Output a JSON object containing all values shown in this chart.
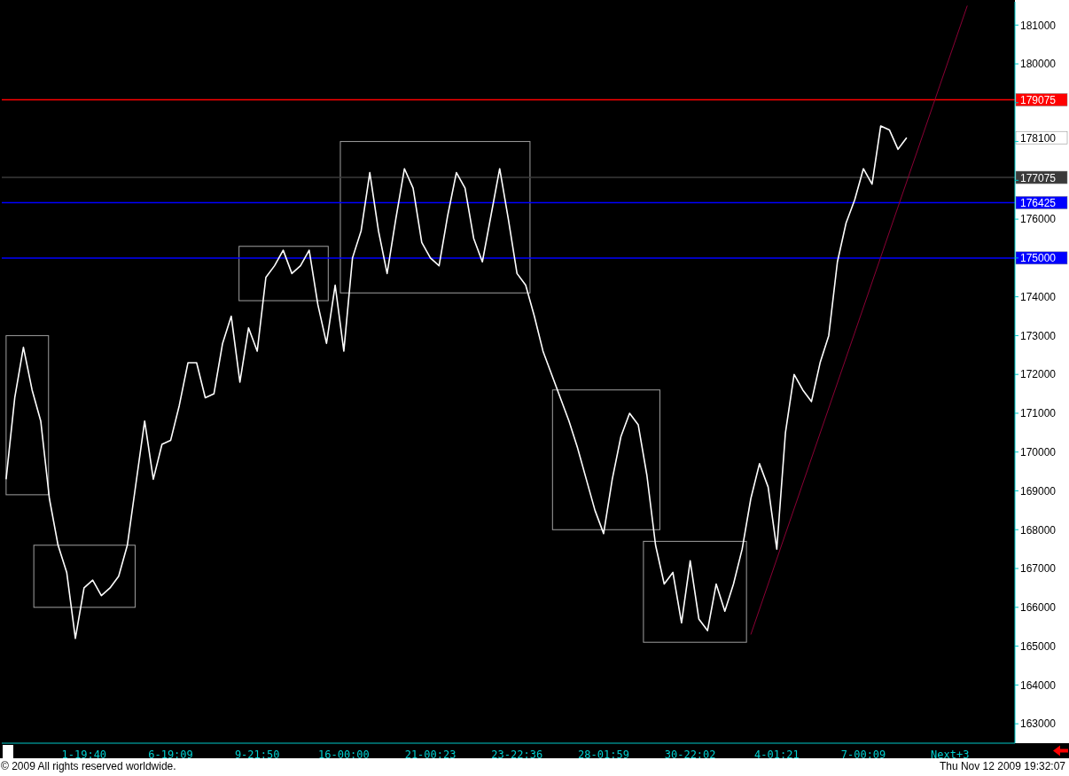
{
  "chart_data": {
    "type": "line",
    "categories": [
      null,
      null,
      null,
      null,
      null,
      null,
      null,
      null,
      null,
      "1-19:40",
      null,
      null,
      null,
      null,
      null,
      null,
      null,
      null,
      null,
      "6-19:09",
      null,
      null,
      null,
      null,
      null,
      null,
      null,
      null,
      null,
      "9-21:50",
      null,
      null,
      null,
      null,
      null,
      null,
      null,
      null,
      null,
      "16-00:00",
      null,
      null,
      null,
      null,
      null,
      null,
      null,
      null,
      null,
      "21-00:23",
      null,
      null,
      null,
      null,
      null,
      null,
      null,
      null,
      null,
      "23-22:36",
      null,
      null,
      null,
      null,
      null,
      null,
      null,
      null,
      null,
      "28-01:59",
      null,
      null,
      null,
      null,
      null,
      null,
      null,
      null,
      null,
      "30-22:02",
      null,
      null,
      null,
      null,
      null,
      null,
      null,
      null,
      null,
      "4-01:21",
      null,
      null,
      null,
      null,
      null,
      null,
      null,
      null,
      null,
      "7-00:09",
      null,
      null,
      null,
      null,
      null,
      null,
      null,
      null,
      null,
      "Next+3",
      null,
      null,
      null,
      null,
      null,
      null,
      null
    ],
    "ylim": [
      162500,
      181600
    ],
    "yticks": [
      163000,
      164000,
      165000,
      166000,
      167000,
      168000,
      169000,
      170000,
      171000,
      172000,
      173000,
      174000,
      {
        "value": 175000,
        "label": null
      },
      176000,
      {
        "value": 177000,
        "label": null
      },
      {
        "value": 178000,
        "label": null
      },
      {
        "value": 179000,
        "label": null
      },
      180000,
      181000
    ],
    "series": [
      {
        "color": "#ffffff",
        "values": [
          169300,
          171400,
          172700,
          171600,
          170800,
          168800,
          167600,
          166900,
          165200,
          166500,
          166700,
          166300,
          166500,
          166800,
          167600,
          169200,
          170800,
          169300,
          170200,
          170300,
          171200,
          172300,
          172300,
          171400,
          171500,
          172800,
          173500,
          171800,
          173200,
          172600,
          174500,
          174800,
          175200,
          174600,
          174800,
          175200,
          173800,
          172800,
          174300,
          172600,
          175000,
          175700,
          177200,
          175700,
          174600,
          176000,
          177300,
          176800,
          175400,
          175000,
          174800,
          176100,
          177200,
          176800,
          175500,
          174900,
          176100,
          177300,
          176000,
          174600,
          174300,
          173500,
          172600,
          172000,
          171400,
          170800,
          170100,
          169300,
          168500,
          167900,
          169300,
          170400,
          171000,
          170700,
          169400,
          167600,
          166600,
          166900,
          165600,
          167200,
          165700,
          165400,
          166600,
          165900,
          166600,
          167500,
          168800,
          169700,
          169100,
          167500,
          170500,
          172000,
          171600,
          171300,
          172300,
          173000,
          174900,
          175900,
          176500,
          177300,
          176900,
          178400,
          178300,
          177800,
          178100,
          null,
          null,
          null,
          null,
          null,
          null,
          null,
          null,
          null,
          null,
          null,
          null
        ]
      },
      {
        "color": "#8b0035",
        "values": [
          null,
          null,
          null,
          null,
          null,
          null,
          null,
          null,
          null,
          null,
          null,
          null,
          null,
          null,
          null,
          null,
          null,
          null,
          null,
          null,
          null,
          null,
          null,
          null,
          null,
          null,
          null,
          null,
          null,
          null,
          null,
          null,
          null,
          null,
          null,
          null,
          null,
          null,
          null,
          null,
          null,
          null,
          null,
          null,
          null,
          null,
          null,
          null,
          null,
          null,
          null,
          null,
          null,
          null,
          null,
          null,
          null,
          null,
          null,
          null,
          null,
          null,
          null,
          null,
          null,
          null,
          null,
          null,
          null,
          null,
          null,
          null,
          null,
          null,
          null,
          null,
          null,
          null,
          null,
          null,
          null,
          null,
          null,
          null,
          null,
          null,
          165300,
          null,
          null,
          null,
          null,
          null,
          null,
          null,
          null,
          null,
          null,
          null,
          null,
          null,
          null,
          null,
          null,
          null,
          null,
          null,
          null,
          null,
          null,
          null,
          null,
          181500,
          null,
          null,
          null,
          null,
          null
        ]
      }
    ],
    "ref_lines": [
      {
        "axis": "y",
        "value": 179075,
        "label": "179075",
        "color": "#ff0000"
      },
      {
        "axis": "y",
        "value": 177075,
        "label": "177075",
        "color": "#3a3a3a"
      },
      {
        "axis": "y",
        "value": 176425,
        "label": "176425",
        "color": "#0000ff"
      },
      {
        "axis": "y",
        "value": 175000,
        "label": "175000",
        "color": "#0000ff"
      }
    ],
    "annotations": [
      "178100",
      "© 2009 All rights reserved worldwide.",
      "Thu Nov 12 2009 19:32:07"
    ]
  }
}
